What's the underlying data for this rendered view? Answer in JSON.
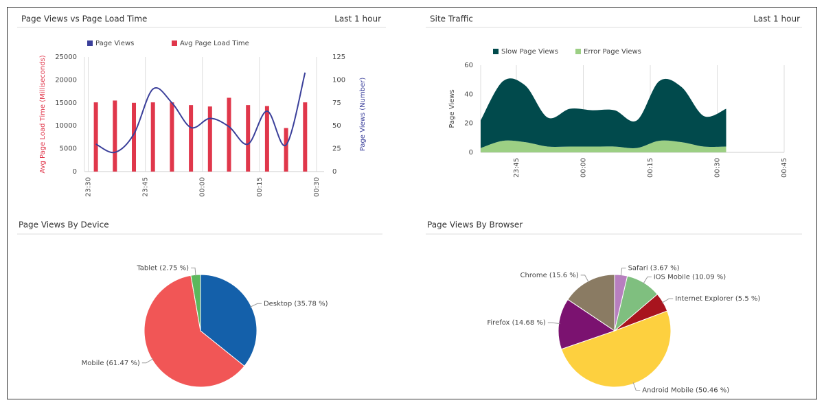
{
  "chart_data": [
    {
      "type": "combo",
      "title": "Page Views vs Page Load Time",
      "time_range": "Last 1 hour",
      "x": [
        "23:32",
        "23:37",
        "23:42",
        "23:47",
        "23:52",
        "23:57",
        "00:02",
        "00:07",
        "00:12",
        "00:17",
        "00:22",
        "00:27"
      ],
      "xlim": [
        "23:29",
        "00:32"
      ],
      "xticks": [
        "23:30",
        "23:45",
        "00:00",
        "00:15",
        "00:30"
      ],
      "ylim": [
        0,
        25000
      ],
      "yticks": [
        0,
        5000,
        10000,
        15000,
        20000,
        25000
      ],
      "y2lim": [
        0,
        125
      ],
      "y2ticks": [
        0,
        25,
        50,
        75,
        100,
        125
      ],
      "ylabel": "Avg Page Load Time (Milliseconds)",
      "y2label": "Page Views (Number)",
      "grid": true,
      "series": [
        {
          "name": "Page Views",
          "type": "line",
          "axis": "y2",
          "color": "#3a3f9a",
          "values": [
            30,
            21,
            41,
            90,
            75,
            48,
            58,
            49,
            30,
            66,
            29,
            108
          ]
        },
        {
          "name": "Avg Page Load Time",
          "type": "bar",
          "axis": "y",
          "color": "#e0374b",
          "values": [
            15100,
            15500,
            15000,
            15100,
            15100,
            14500,
            14200,
            16100,
            14500,
            14300,
            9500,
            15100
          ]
        }
      ]
    },
    {
      "type": "area",
      "title": "Site Traffic",
      "time_range": "Last 1 hour",
      "stacked": true,
      "x": [
        "23:37",
        "23:42",
        "23:47",
        "23:52",
        "23:57",
        "00:02",
        "00:07",
        "00:12",
        "00:17",
        "00:22",
        "00:27",
        "00:32"
      ],
      "xlim": [
        "23:37",
        "00:45"
      ],
      "xticks": [
        "23:45",
        "00:00",
        "00:15",
        "00:30",
        "00:45"
      ],
      "ylim": [
        0,
        60
      ],
      "yticks": [
        0,
        20,
        40,
        60
      ],
      "ylabel": "Page Views",
      "grid": true,
      "series": [
        {
          "name": "Slow Page Views",
          "color": "#014a4c",
          "values": [
            19,
            41,
            39,
            20,
            26,
            25,
            25,
            19,
            41,
            38,
            21,
            26
          ]
        },
        {
          "name": "Error Page Views",
          "color": "#9ccf84",
          "values": [
            3,
            8,
            7,
            4,
            4,
            4,
            4,
            3,
            8,
            7,
            4,
            4
          ]
        }
      ]
    },
    {
      "type": "pie",
      "title": "Page Views By Device",
      "values": [
        35.78,
        61.47,
        2.75
      ],
      "value_labels": [
        "Desktop (35.78 %)",
        "Mobile (61.47 %)",
        "Tablet (2.75 %)"
      ],
      "colors": [
        "#1460aa",
        "#f15656",
        "#5cb85c"
      ]
    },
    {
      "type": "pie",
      "title": "Page Views By Browser",
      "values": [
        3.67,
        10.09,
        5.5,
        50.46,
        14.68,
        15.6
      ],
      "value_labels": [
        "Safari (3.67 %)",
        "iOS Mobile (10.09 %)",
        "Internet Explorer (5.5 %)",
        "Android Mobile (50.46 %)",
        "Firefox (14.68 %)",
        "Chrome (15.6 %)"
      ],
      "colors": [
        "#b77fbf",
        "#7fbf7f",
        "#a8141e",
        "#fdd03f",
        "#7b1270",
        "#8a7b63"
      ]
    }
  ]
}
